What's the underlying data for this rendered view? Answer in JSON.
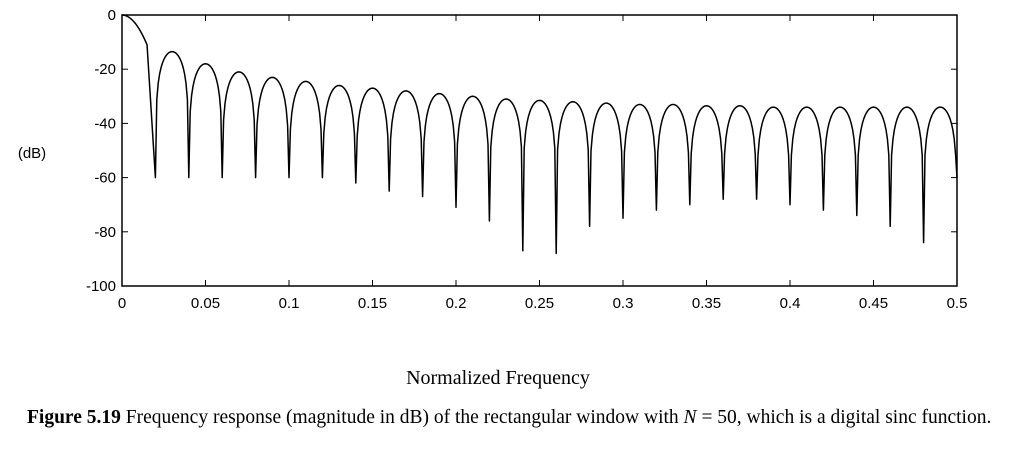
{
  "chart_data": {
    "type": "line",
    "title": "",
    "xlabel": "Normalized Frequency",
    "ylabel": "(dB)",
    "xlim": [
      0,
      0.5
    ],
    "ylim": [
      -100,
      0
    ],
    "xticks": [
      {
        "value": 0,
        "label": "0"
      },
      {
        "value": 0.05,
        "label": "0.05"
      },
      {
        "value": 0.1,
        "label": "0.1"
      },
      {
        "value": 0.15,
        "label": "0.15"
      },
      {
        "value": 0.2,
        "label": "0.2"
      },
      {
        "value": 0.25,
        "label": "0.25"
      },
      {
        "value": 0.3,
        "label": "0.3"
      },
      {
        "value": 0.35,
        "label": "0.35"
      },
      {
        "value": 0.4,
        "label": "0.4"
      },
      {
        "value": 0.45,
        "label": "0.45"
      },
      {
        "value": 0.5,
        "label": "0.5"
      }
    ],
    "yticks": [
      {
        "value": 0,
        "label": "0"
      },
      {
        "value": -20,
        "label": "-20"
      },
      {
        "value": -40,
        "label": "-40"
      },
      {
        "value": -60,
        "label": "-60"
      },
      {
        "value": -80,
        "label": "-80"
      },
      {
        "value": -100,
        "label": "-100"
      }
    ],
    "grid": false,
    "series": [
      {
        "name": "",
        "x": [
          0,
          0.005,
          0.01,
          0.015,
          0.02,
          0.03,
          0.04,
          0.05,
          0.06,
          0.07,
          0.08,
          0.09,
          0.1,
          0.11,
          0.12,
          0.13,
          0.14,
          0.15,
          0.16,
          0.17,
          0.18,
          0.19,
          0.2,
          0.21,
          0.22,
          0.23,
          0.24,
          0.25,
          0.26,
          0.27,
          0.28,
          0.29,
          0.3,
          0.31,
          0.32,
          0.33,
          0.34,
          0.35,
          0.36,
          0.37,
          0.38,
          0.39,
          0.4,
          0.41,
          0.42,
          0.43,
          0.44,
          0.45,
          0.46,
          0.47,
          0.48,
          0.49,
          0.5
        ],
        "y": [
          0,
          -1,
          -4,
          -11,
          -60,
          -13.5,
          -60,
          -18,
          -60,
          -21,
          -60,
          -23,
          -60,
          -24.5,
          -60,
          -26,
          -62,
          -27,
          -65,
          -28,
          -67,
          -29,
          -71,
          -30,
          -76,
          -31,
          -87,
          -31.5,
          -88,
          -32,
          -78,
          -32.5,
          -75,
          -33,
          -72,
          -33,
          -70,
          -33.5,
          -68,
          -33.5,
          -68,
          -34,
          -70,
          -34,
          -72,
          -34,
          -74,
          -34,
          -78,
          -34,
          -84,
          -34,
          -60
        ]
      }
    ]
  },
  "caption": {
    "label": "Figure 5.19",
    "text_before_n": " Frequency response (magnitude in dB) of the rectangular window with ",
    "var": "N",
    "text_after_n": " = 50, which is a digital sinc function."
  }
}
